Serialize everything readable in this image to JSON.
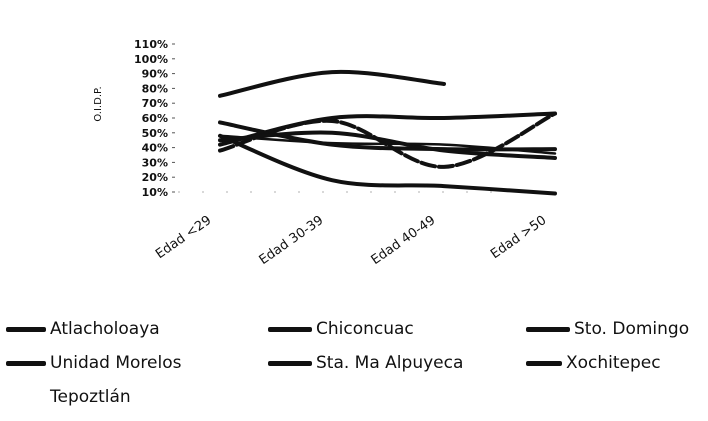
{
  "chart_data": {
    "type": "line",
    "ylabel": "O.I.D.P.",
    "xlabel": "",
    "ylim": [
      10,
      110
    ],
    "yticks": [
      "110%",
      "100%",
      "90%",
      "80%",
      "70%",
      "60%",
      "50%",
      "40%",
      "30%",
      "20%",
      "10%"
    ],
    "categories": [
      "Edad <29",
      "Edad 30-39",
      "Edad 40-49",
      "Edad >50"
    ],
    "series": [
      {
        "name": "Atlacholoaya",
        "values": [
          75,
          91,
          83,
          null
        ]
      },
      {
        "name": "Chiconcuac",
        "values": [
          42,
          60,
          60,
          63
        ]
      },
      {
        "name": "Sto. Domingo",
        "values": [
          57,
          42,
          39,
          39
        ]
      },
      {
        "name": "Unidad Morelos",
        "values": [
          48,
          18,
          14,
          9
        ]
      },
      {
        "name": "Sta. Ma Alpuyeca",
        "values": [
          38,
          58,
          27,
          63
        ]
      },
      {
        "name": "Xochitepec",
        "values": [
          45,
          50,
          38,
          33
        ]
      },
      {
        "name": "Tepoztlán",
        "values": [
          48,
          43,
          42,
          36
        ]
      }
    ],
    "grid": false,
    "legend_position": "bottom"
  }
}
